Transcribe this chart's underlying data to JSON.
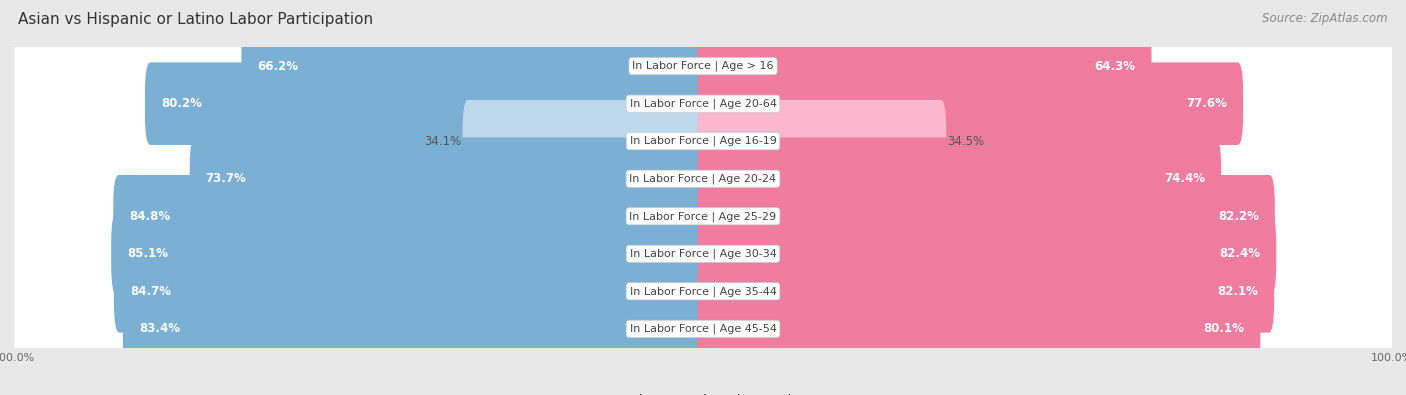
{
  "title": "Asian vs Hispanic or Latino Labor Participation",
  "source": "Source: ZipAtlas.com",
  "categories": [
    "In Labor Force | Age > 16",
    "In Labor Force | Age 20-64",
    "In Labor Force | Age 16-19",
    "In Labor Force | Age 20-24",
    "In Labor Force | Age 25-29",
    "In Labor Force | Age 30-34",
    "In Labor Force | Age 35-44",
    "In Labor Force | Age 45-54"
  ],
  "asian_values": [
    66.2,
    80.2,
    34.1,
    73.7,
    84.8,
    85.1,
    84.7,
    83.4
  ],
  "hispanic_values": [
    64.3,
    77.6,
    34.5,
    74.4,
    82.2,
    82.4,
    82.1,
    80.1
  ],
  "asian_color": "#7BAFD4",
  "asian_color_light": "#BDD7EC",
  "hispanic_color": "#F07CA0",
  "hispanic_color_light": "#F9B8CE",
  "bg_color": "#e8e8e8",
  "row_bg_color": "#f0f0f0",
  "max_value": 100.0,
  "title_fontsize": 11,
  "source_fontsize": 8.5,
  "label_fontsize": 8.5,
  "category_fontsize": 8,
  "legend_fontsize": 9,
  "axis_label_fontsize": 8
}
